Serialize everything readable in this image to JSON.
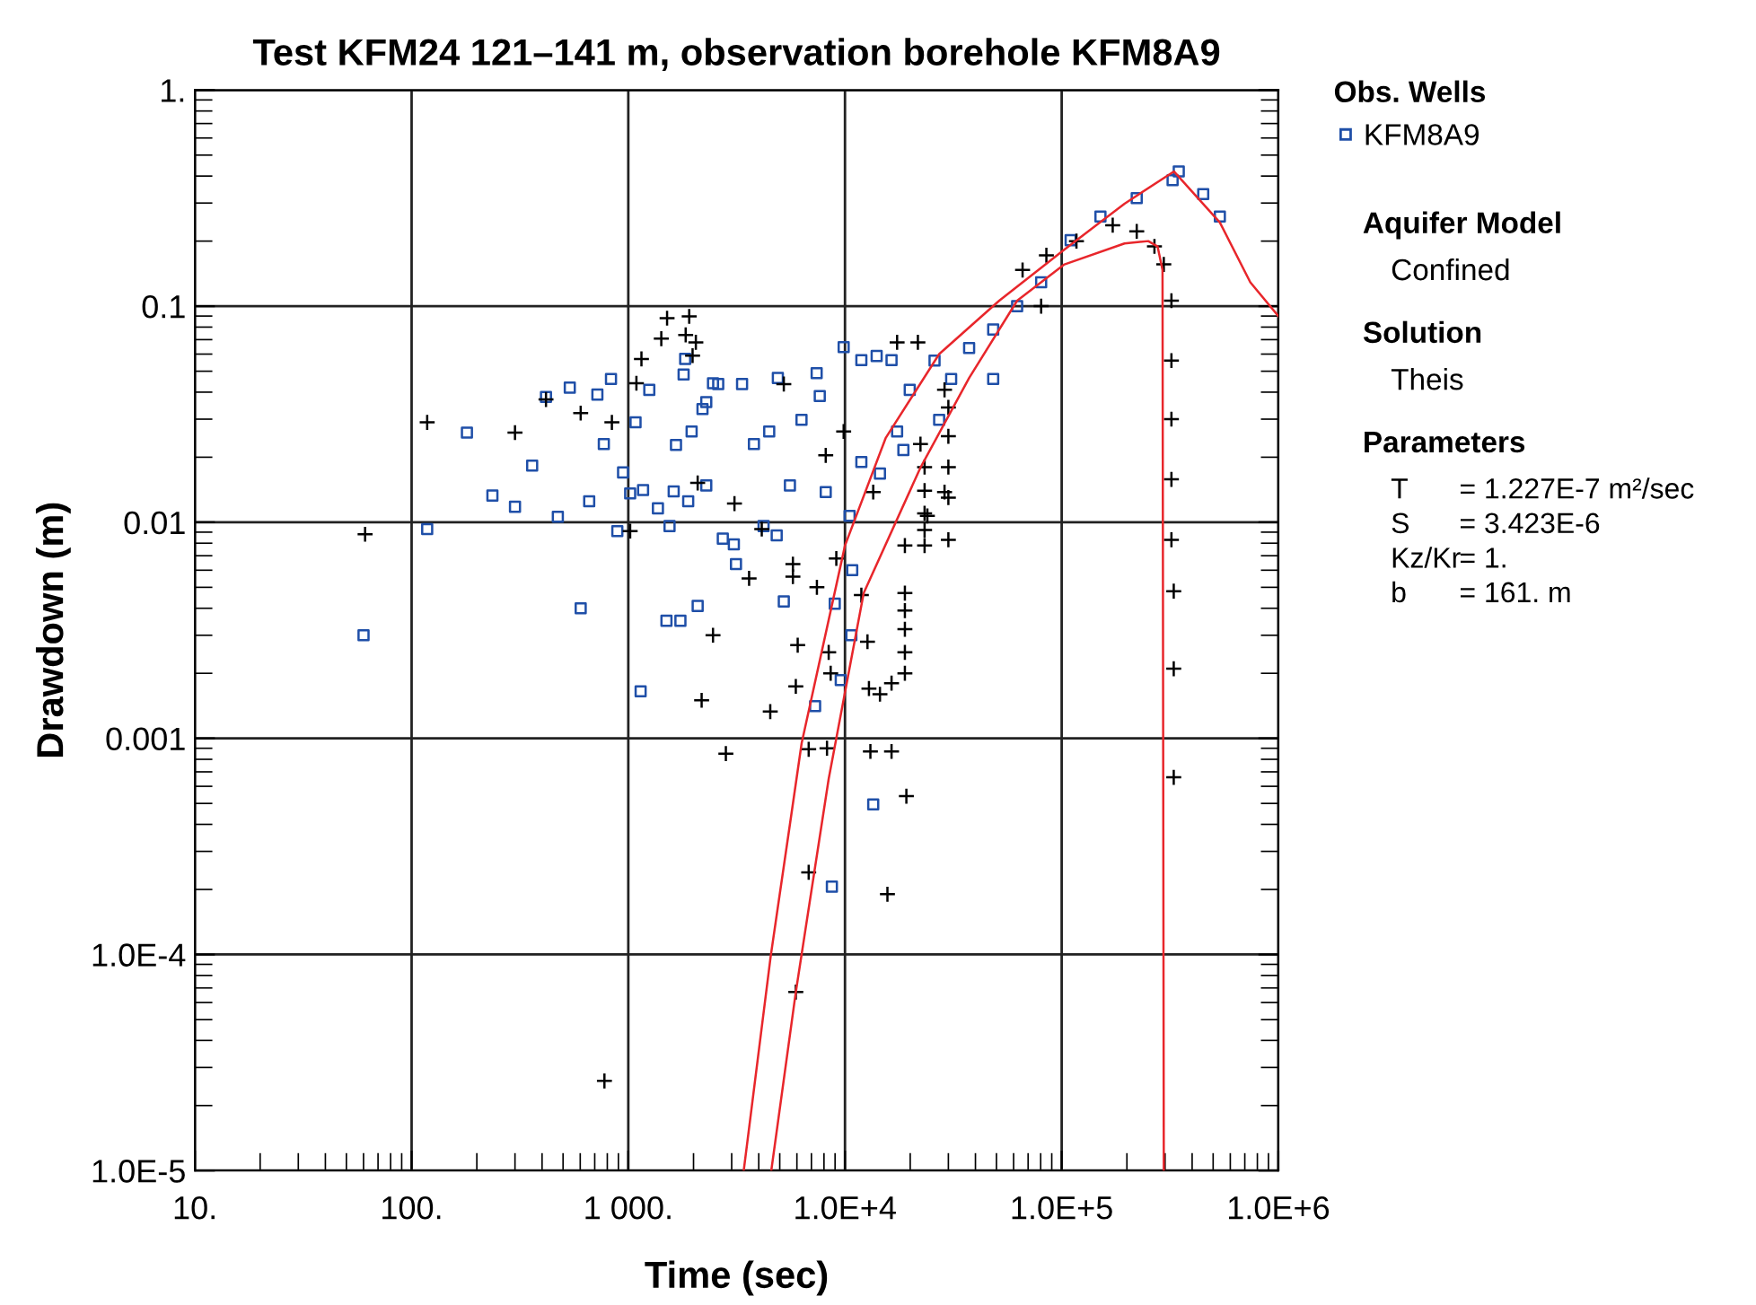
{
  "chart_data": {
    "type": "scatter",
    "title": "Test KFM24 121–141 m, observation borehole KFM8A9",
    "xlabel": "Time (sec)",
    "ylabel": "Drawdown (m)",
    "log": "xy",
    "grid": true,
    "legend": "right",
    "legend_title": "Obs. Wells",
    "xlim": [
      10,
      1000000
    ],
    "ylim": [
      1e-05,
      1
    ],
    "xticks": [
      {
        "value": 10,
        "label": "10."
      },
      {
        "value": 100,
        "label": "100."
      },
      {
        "value": 1000,
        "label": "1 000."
      },
      {
        "value": 10000,
        "label": "1.0E+4"
      },
      {
        "value": 100000,
        "label": "1.0E+5"
      },
      {
        "value": 1000000,
        "label": "1.0E+6"
      }
    ],
    "yticks": [
      {
        "value": 1e-05,
        "label": "1.0E-5"
      },
      {
        "value": 0.0001,
        "label": "1.0E-4"
      },
      {
        "value": 0.001,
        "label": "0.001"
      },
      {
        "value": 0.01,
        "label": "0.01"
      },
      {
        "value": 0.1,
        "label": "0.1"
      },
      {
        "value": 1,
        "label": "1."
      }
    ],
    "annotations": [
      "Aquifer Model",
      "Confined",
      "Solution",
      "Theis",
      "Parameters",
      "T = 1.227E-7 m²/sec",
      "S = 3.423E-6",
      "Kz/Kr = 1.",
      "b = 161. m"
    ],
    "series": [
      {
        "name": "KFM8A9",
        "marker": "square",
        "color": "#1f4fa8",
        "x": [
          60,
          118,
          180,
          236,
          300,
          360,
          417,
          473,
          537,
          603,
          660,
          720,
          771,
          832,
          890,
          946,
          1020,
          1080,
          1140,
          1170,
          1250,
          1370,
          1500,
          1550,
          1620,
          1660,
          1740,
          1800,
          1830,
          1890,
          1960,
          2090,
          2200,
          2290,
          2290,
          2460,
          2600,
          2730,
          3070,
          3140,
          3350,
          3800,
          4210,
          4470,
          4840,
          4900,
          5220,
          5570,
          6300,
          7280,
          7400,
          7650,
          8150,
          8700,
          8970,
          9560,
          9860,
          10500,
          10700,
          10800,
          11900,
          11900,
          13500,
          14000,
          14500,
          16400,
          17400,
          18600,
          19900,
          25900,
          27200,
          30900,
          37400,
          48300,
          48300,
          62300,
          80400,
          110000,
          151000,
          222000,
          325000,
          347000,
          450000,
          537000
        ],
        "values": [
          0.003,
          0.0093,
          0.026,
          0.0133,
          0.0118,
          0.0183,
          0.038,
          0.0106,
          0.042,
          0.004,
          0.0125,
          0.039,
          0.023,
          0.046,
          0.0091,
          0.017,
          0.0136,
          0.029,
          0.00165,
          0.0141,
          0.041,
          0.0116,
          0.0035,
          0.0096,
          0.0139,
          0.0228,
          0.0035,
          0.0483,
          0.057,
          0.0125,
          0.0263,
          0.0041,
          0.0334,
          0.0148,
          0.036,
          0.044,
          0.0436,
          0.0084,
          0.0079,
          0.0064,
          0.0436,
          0.023,
          0.0096,
          0.0263,
          0.0087,
          0.0465,
          0.0043,
          0.0148,
          0.0298,
          0.00141,
          0.049,
          0.0384,
          0.0138,
          0.000206,
          0.0042,
          0.00186,
          0.0646,
          0.0107,
          0.003,
          0.006,
          0.0563,
          0.019,
          0.000495,
          0.0588,
          0.0168,
          0.0563,
          0.0263,
          0.0216,
          0.041,
          0.056,
          0.0298,
          0.046,
          0.064,
          0.078,
          0.046,
          0.1,
          0.129,
          0.202,
          0.26,
          0.316,
          0.383,
          0.42,
          0.33,
          0.26
        ]
      },
      {
        "marker": "cross",
        "color": "#000000",
        "x": [
          61,
          118,
          300,
          417,
          603,
          776,
          840,
          1020,
          1090,
          1150,
          1420,
          1510,
          1840,
          1910,
          1980,
          2050,
          2090,
          2180,
          2460,
          2820,
          3090,
          3610,
          4130,
          4520,
          5220,
          5750,
          5750,
          5930,
          5930,
          6050,
          6800,
          6800,
          7420,
          8150,
          8260,
          8410,
          8590,
          9120,
          9860,
          11900,
          12700,
          12900,
          13100,
          13500,
          14500,
          15700,
          16400,
          16400,
          17400,
          18900,
          18900,
          18900,
          18900,
          18900,
          18900,
          19200,
          21700,
          22300,
          23300,
          23300,
          23300,
          23300,
          23300,
          24000,
          28800,
          28800,
          30000,
          30000,
          30000,
          30000,
          30000,
          66000,
          80400,
          85000,
          117000,
          172000,
          222000,
          268000,
          296000,
          321000,
          321000,
          321000,
          321000,
          321000,
          329000,
          329000,
          329000
        ],
        "values": [
          0.0088,
          0.029,
          0.026,
          0.037,
          0.032,
          2.6e-05,
          0.029,
          0.0091,
          0.044,
          0.057,
          0.0707,
          0.088,
          0.0736,
          0.0897,
          0.059,
          0.068,
          0.0152,
          0.0015,
          0.003,
          0.00085,
          0.0122,
          0.0055,
          0.0093,
          0.00133,
          0.0436,
          0.0064,
          0.0056,
          0.00174,
          6.7e-05,
          0.0027,
          0.00089,
          0.00024,
          0.005,
          0.0204,
          0.0009,
          0.0025,
          0.002,
          0.0068,
          0.0263,
          0.0046,
          0.0028,
          0.0017,
          0.00087,
          0.0138,
          0.0016,
          0.00019,
          0.0018,
          0.00087,
          0.068,
          0.0078,
          0.0047,
          0.0039,
          0.0032,
          0.0025,
          0.002,
          0.00054,
          0.068,
          0.023,
          0.018,
          0.014,
          0.011,
          0.0092,
          0.0078,
          0.0107,
          0.041,
          0.0138,
          0.034,
          0.025,
          0.018,
          0.013,
          0.0083,
          0.147,
          0.1,
          0.172,
          0.2,
          0.237,
          0.222,
          0.189,
          0.156,
          0.106,
          0.056,
          0.03,
          0.0158,
          0.0083,
          0.0048,
          0.0021,
          0.00066
        ]
      },
      {
        "type": "line",
        "marker": "none",
        "color": "#e8262b",
        "x": [
          3410,
          4540,
          5570,
          6310,
          10000,
          15400,
          27200,
          51500,
          103000,
          195000,
          330000,
          537000,
          742000,
          1000000
        ],
        "values": [
          1e-05,
          9.8e-05,
          0.0004,
          0.00095,
          0.0078,
          0.0245,
          0.06,
          0.106,
          0.183,
          0.298,
          0.42,
          0.244,
          0.129,
          0.09
        ]
      },
      {
        "type": "line",
        "marker": "none",
        "color": "#e8262b",
        "x": [
          4570,
          5930,
          8410,
          12200,
          22300,
          37400,
          62300,
          103000,
          195000,
          251000,
          277000,
          292000,
          294000,
          296000
        ],
        "values": [
          1e-05,
          6.7e-05,
          0.00065,
          0.0047,
          0.0179,
          0.0465,
          0.106,
          0.156,
          0.195,
          0.2,
          0.189,
          0.147,
          0.001,
          1e-05
        ]
      }
    ]
  }
}
